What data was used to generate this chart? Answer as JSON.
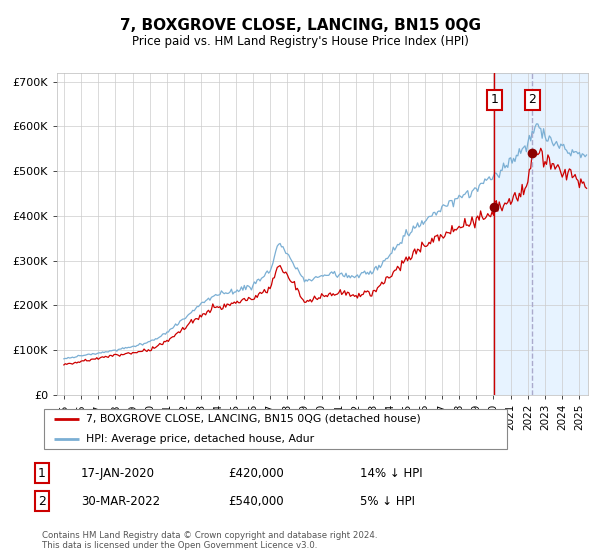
{
  "title": "7, BOXGROVE CLOSE, LANCING, BN15 0QG",
  "subtitle": "Price paid vs. HM Land Registry's House Price Index (HPI)",
  "legend_line1": "7, BOXGROVE CLOSE, LANCING, BN15 0QG (detached house)",
  "legend_line2": "HPI: Average price, detached house, Adur",
  "transaction1_date": "17-JAN-2020",
  "transaction1_price": "£420,000",
  "transaction1_note": "14% ↓ HPI",
  "transaction2_date": "30-MAR-2022",
  "transaction2_price": "£540,000",
  "transaction2_note": "5% ↓ HPI",
  "footer": "Contains HM Land Registry data © Crown copyright and database right 2024.\nThis data is licensed under the Open Government Licence v3.0.",
  "hpi_color": "#7bafd4",
  "property_color": "#cc0000",
  "marker_color": "#8b0000",
  "vline1_color": "#cc0000",
  "vline2_color": "#aaaacc",
  "shade_color": "#ddeeff",
  "grid_color": "#cccccc",
  "box_color": "#cc0000",
  "ylim": [
    0,
    720000
  ],
  "yticks": [
    0,
    100000,
    200000,
    300000,
    400000,
    500000,
    600000,
    700000
  ],
  "ytick_labels": [
    "£0",
    "£100K",
    "£200K",
    "£300K",
    "£400K",
    "£500K",
    "£600K",
    "£700K"
  ],
  "transaction1_x": 2020.04,
  "transaction1_y": 420000,
  "transaction2_x": 2022.25,
  "transaction2_y": 540000,
  "shade_start": 2020.04,
  "shade_end": 2025.5,
  "xmin": 1994.6,
  "xmax": 2025.5
}
